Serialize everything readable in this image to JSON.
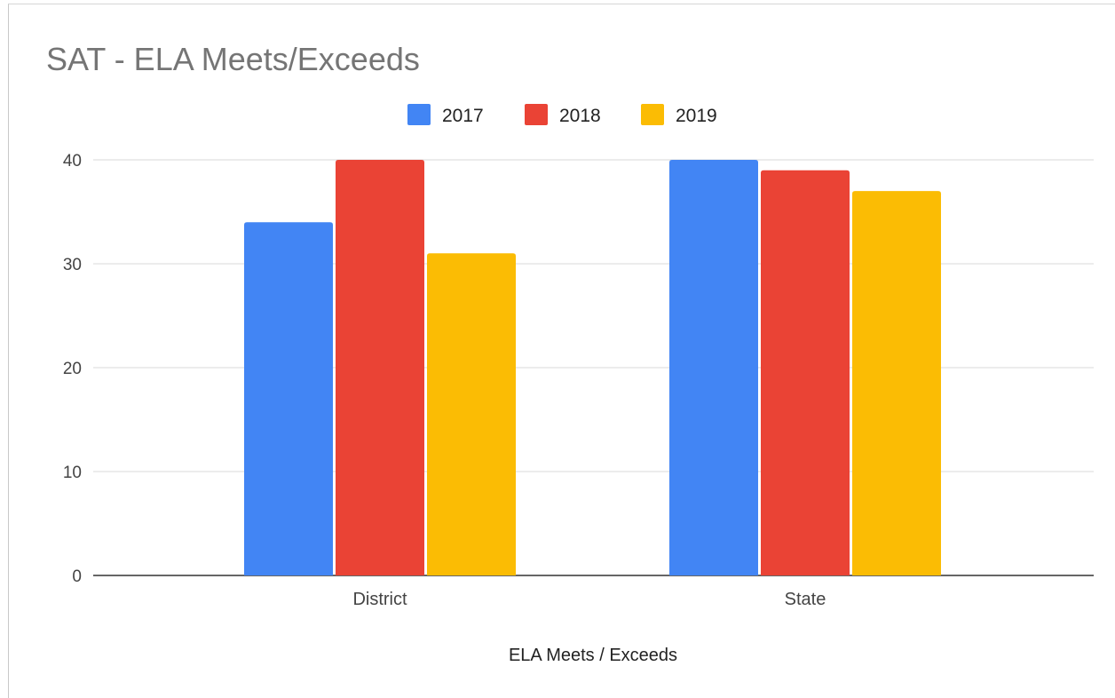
{
  "chart_data": {
    "type": "bar",
    "title": "SAT - ELA Meets/Exceeds",
    "xlabel": "ELA Meets / Exceeds",
    "ylabel": "",
    "categories": [
      "District",
      "State"
    ],
    "series": [
      {
        "name": "2017",
        "color": "#4285f4",
        "values": [
          34,
          40
        ]
      },
      {
        "name": "2018",
        "color": "#ea4335",
        "values": [
          40,
          39
        ]
      },
      {
        "name": "2019",
        "color": "#fbbc04",
        "values": [
          31,
          37
        ]
      }
    ],
    "ylim": [
      0,
      40
    ],
    "yticks": [
      "0",
      "10",
      "20",
      "30",
      "40"
    ],
    "grid": true,
    "legend_position": "top"
  }
}
